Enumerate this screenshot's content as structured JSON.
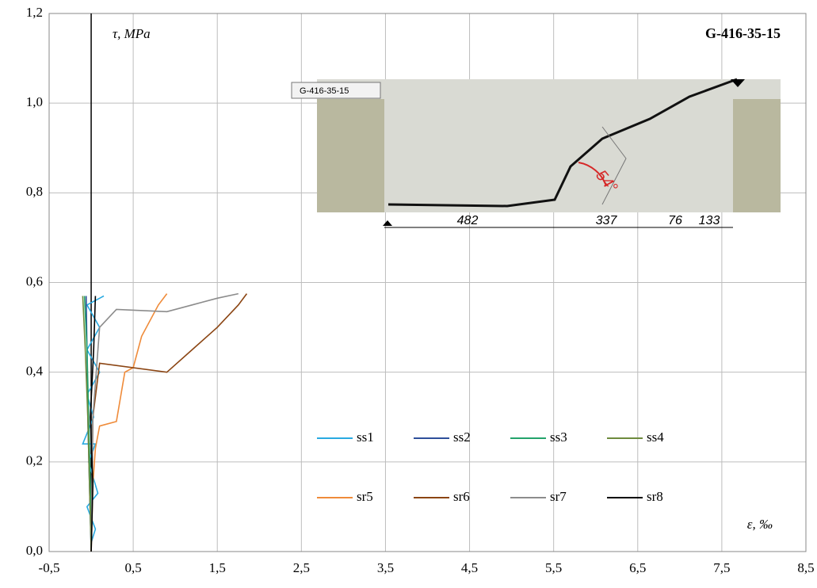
{
  "chart_data": {
    "type": "line",
    "title": "G-416-35-15",
    "y_label": "τ, MPa",
    "x_label": "ε, ‰",
    "xlim": [
      -0.5,
      8.5
    ],
    "ylim": [
      0,
      1.2
    ],
    "xticks": [
      {
        "value": -0.5,
        "label": "-0,5"
      },
      {
        "value": 0.5,
        "label": "0,5"
      },
      {
        "value": 1.5,
        "label": "1,5"
      },
      {
        "value": 2.5,
        "label": "2,5"
      },
      {
        "value": 3.5,
        "label": "3,5"
      },
      {
        "value": 4.5,
        "label": "4,5"
      },
      {
        "value": 5.5,
        "label": "5,5"
      },
      {
        "value": 6.5,
        "label": "6,5"
      },
      {
        "value": 7.5,
        "label": "7,5"
      },
      {
        "value": 8.5,
        "label": "8,5"
      }
    ],
    "yticks": [
      {
        "value": 0,
        "label": "0,0"
      },
      {
        "value": 0.2,
        "label": "0,2"
      },
      {
        "value": 0.4,
        "label": "0,4"
      },
      {
        "value": 0.6,
        "label": "0,6"
      },
      {
        "value": 0.8,
        "label": "0,8"
      },
      {
        "value": 1.0,
        "label": "1,0"
      },
      {
        "value": 1.2,
        "label": "1,2"
      }
    ],
    "grid": true,
    "series": [
      {
        "name": "ss1",
        "color": "#29aae1",
        "x": [
          0,
          0.05,
          -0.05,
          0.08,
          -0.03,
          0.05,
          -0.1,
          0.03,
          -0.05,
          0.1,
          -0.05,
          0.1,
          -0.05,
          0.15
        ],
        "values": [
          0.02,
          0.05,
          0.1,
          0.13,
          0.2,
          0.24,
          0.24,
          0.3,
          0.35,
          0.4,
          0.45,
          0.5,
          0.55,
          0.57
        ]
      },
      {
        "name": "ss2",
        "color": "#2e4f9a",
        "x": [
          0,
          -0.02,
          -0.04,
          -0.05,
          -0.06
        ],
        "values": [
          0,
          0.15,
          0.3,
          0.45,
          0.57
        ]
      },
      {
        "name": "ss3",
        "color": "#23a36b",
        "x": [
          0,
          -0.01,
          -0.03,
          -0.05,
          -0.08
        ],
        "values": [
          0,
          0.15,
          0.3,
          0.45,
          0.57
        ]
      },
      {
        "name": "ss4",
        "color": "#6e8b3d",
        "x": [
          0,
          -0.02,
          -0.04,
          -0.07,
          -0.1
        ],
        "values": [
          0,
          0.15,
          0.3,
          0.45,
          0.57
        ]
      },
      {
        "name": "sr5",
        "color": "#ef8b3a",
        "x": [
          0,
          0.02,
          0.05,
          0.1,
          0.3,
          0.4,
          0.5,
          0.6,
          0.8,
          0.9
        ],
        "values": [
          0,
          0.15,
          0.23,
          0.28,
          0.29,
          0.4,
          0.41,
          0.48,
          0.55,
          0.575
        ]
      },
      {
        "name": "sr6",
        "color": "#8b4513",
        "x": [
          0,
          0.02,
          0.1,
          0.9,
          1.2,
          1.5,
          1.75,
          1.85
        ],
        "values": [
          0,
          0.3,
          0.42,
          0.4,
          0.45,
          0.5,
          0.55,
          0.575
        ]
      },
      {
        "name": "sr7",
        "color": "#8c8c8c",
        "x": [
          0,
          0.02,
          0.1,
          0.3,
          0.9,
          1.2,
          1.5,
          1.75
        ],
        "values": [
          0,
          0.3,
          0.5,
          0.54,
          0.535,
          0.55,
          0.565,
          0.575
        ]
      },
      {
        "name": "sr8",
        "color": "#000000",
        "x": [
          0,
          0.02,
          -0.01,
          0.03,
          0.05
        ],
        "values": [
          0,
          0.15,
          0.3,
          0.45,
          0.57
        ]
      }
    ],
    "inset": {
      "label": "G-416-35-15",
      "angle": "54°",
      "dimensions": [
        "482",
        "337",
        "76",
        "133"
      ]
    }
  }
}
